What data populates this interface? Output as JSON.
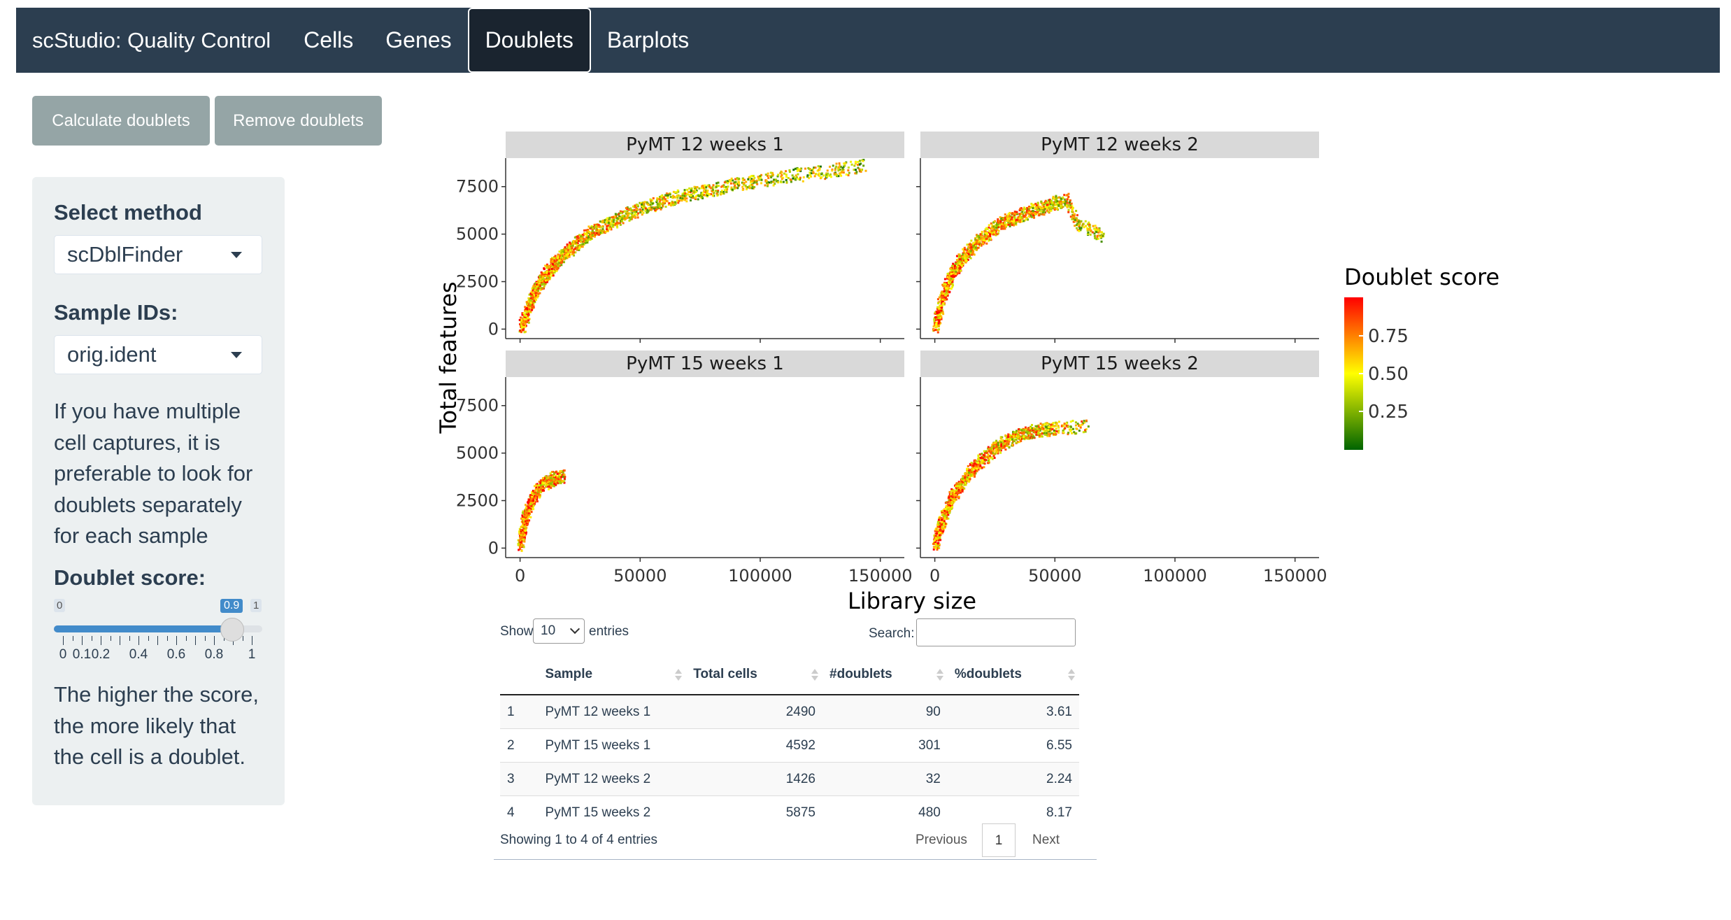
{
  "navbar": {
    "brand": "scStudio: Quality Control",
    "tabs": [
      {
        "label": "Cells",
        "active": false
      },
      {
        "label": "Genes",
        "active": false
      },
      {
        "label": "Doublets",
        "active": true
      },
      {
        "label": "Barplots",
        "active": false
      }
    ]
  },
  "actions": {
    "calculate_label": "Calculate doublets",
    "remove_label": "Remove doublets"
  },
  "sidebar": {
    "method_label": "Select method",
    "method_value": "scDblFinder",
    "sample_label": "Sample IDs:",
    "sample_value": "orig.ident",
    "help_lines": [
      "If you have multiple",
      "cell captures, it is",
      "preferable to look for",
      "doublets separately",
      "for each sample"
    ],
    "score_label": "Doublet score:",
    "slider": {
      "min": "0",
      "max": "1",
      "value": "0.9",
      "value_num": 0.9,
      "tick_labels": [
        "0",
        "0.1",
        "0.2",
        "0.4",
        "0.6",
        "0.8",
        "1"
      ]
    },
    "note_lines": [
      "The higher the score,",
      "the more likely that",
      "the cell is a doublet."
    ]
  },
  "chart_data": {
    "type": "scatter",
    "xlabel": "Library size",
    "ylabel": "Total features",
    "legend_title": "Doublet score",
    "legend_ticks": [
      "0.75",
      "0.50",
      "0.25"
    ],
    "legend_position": "right",
    "colorscale": [
      "#006400",
      "#ffff00",
      "#ff0000"
    ],
    "x_ticks": [
      "0",
      "50000",
      "100000",
      "150000"
    ],
    "y_ticks": [
      "0",
      "2500",
      "5000",
      "7500"
    ],
    "xlim": [
      -6000,
      160000
    ],
    "ylim": [
      -500,
      9000
    ],
    "panels": [
      {
        "title": "PyMT 12 weeks 1",
        "points": [
          [
            800,
            100
          ],
          [
            2000,
            500
          ],
          [
            3500,
            1100
          ],
          [
            5000,
            1600
          ],
          [
            7000,
            2100
          ],
          [
            9000,
            2500
          ],
          [
            11000,
            2900
          ],
          [
            13000,
            3200
          ],
          [
            15000,
            3500
          ],
          [
            18000,
            3900
          ],
          [
            21000,
            4200
          ],
          [
            25000,
            4600
          ],
          [
            29000,
            5000
          ],
          [
            33000,
            5300
          ],
          [
            38000,
            5600
          ],
          [
            44000,
            6000
          ],
          [
            50000,
            6300
          ],
          [
            57000,
            6600
          ],
          [
            64000,
            6900
          ],
          [
            72000,
            7100
          ],
          [
            80000,
            7300
          ],
          [
            90000,
            7600
          ],
          [
            100000,
            7800
          ],
          [
            115000,
            8100
          ],
          [
            130000,
            8300
          ],
          [
            143000,
            8600
          ]
        ]
      },
      {
        "title": "PyMT 12 weeks 2",
        "points": [
          [
            500,
            100
          ],
          [
            1500,
            700
          ],
          [
            3000,
            1500
          ],
          [
            5000,
            2200
          ],
          [
            7000,
            2800
          ],
          [
            9500,
            3300
          ],
          [
            12000,
            3800
          ],
          [
            15000,
            4200
          ],
          [
            18000,
            4600
          ],
          [
            22000,
            5000
          ],
          [
            26000,
            5400
          ],
          [
            30000,
            5700
          ],
          [
            35000,
            5900
          ],
          [
            40000,
            6200
          ],
          [
            45000,
            6400
          ],
          [
            50000,
            6600
          ],
          [
            55000,
            6800
          ],
          [
            60000,
            5500
          ],
          [
            70000,
            4900
          ]
        ]
      },
      {
        "title": "PyMT 15 weeks 1",
        "points": [
          [
            300,
            100
          ],
          [
            1000,
            800
          ],
          [
            2000,
            1400
          ],
          [
            3500,
            2000
          ],
          [
            5000,
            2500
          ],
          [
            7000,
            2900
          ],
          [
            9000,
            3300
          ],
          [
            12000,
            3500
          ],
          [
            15000,
            3700
          ],
          [
            18000,
            3750
          ]
        ]
      },
      {
        "title": "PyMT 15 weeks 2",
        "points": [
          [
            500,
            100
          ],
          [
            1500,
            700
          ],
          [
            3000,
            1400
          ],
          [
            5000,
            2000
          ],
          [
            7000,
            2600
          ],
          [
            9500,
            3100
          ],
          [
            12000,
            3500
          ],
          [
            15000,
            4000
          ],
          [
            18000,
            4400
          ],
          [
            22000,
            4900
          ],
          [
            26000,
            5300
          ],
          [
            30000,
            5600
          ],
          [
            35000,
            5900
          ],
          [
            40000,
            6100
          ],
          [
            45000,
            6200
          ],
          [
            50000,
            6300
          ],
          [
            64000,
            6400
          ]
        ]
      }
    ]
  },
  "table": {
    "show_label": "Show",
    "entries_value": "10",
    "entries_label": "entries",
    "search_label": "Search:",
    "columns": [
      "",
      "Sample",
      "Total cells",
      "#doublets",
      "%doublets"
    ],
    "rows": [
      [
        "1",
        "PyMT 12 weeks 1",
        "2490",
        "90",
        "3.61"
      ],
      [
        "2",
        "PyMT 15 weeks 1",
        "4592",
        "301",
        "6.55"
      ],
      [
        "3",
        "PyMT 12 weeks 2",
        "1426",
        "32",
        "2.24"
      ],
      [
        "4",
        "PyMT 15 weeks 2",
        "5875",
        "480",
        "8.17"
      ]
    ],
    "info": "Showing 1 to 4 of 4 entries",
    "prev_label": "Previous",
    "page": "1",
    "next_label": "Next"
  }
}
